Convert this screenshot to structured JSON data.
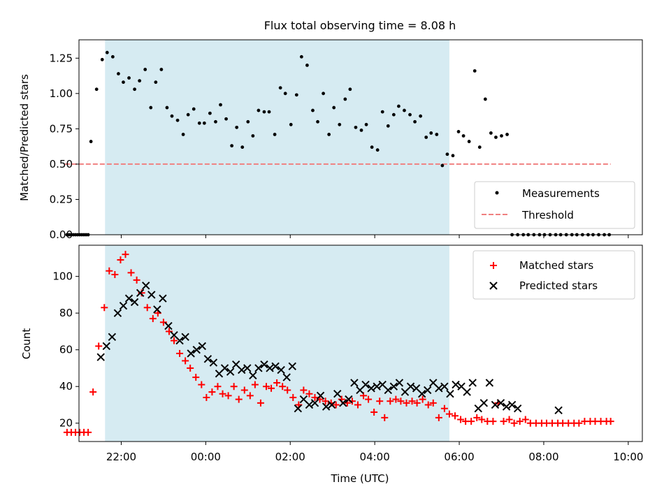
{
  "figure": {
    "title": "Flux total observing time = 8.08 h",
    "xlabel": "Time (UTC)",
    "shaded_color": "#add8e6"
  },
  "chart_data": [
    {
      "type": "scatter",
      "panel": "top",
      "ylabel": "Matched/Predicted stars",
      "xlim": [
        "21:00",
        "10:20"
      ],
      "ylim": [
        0,
        1.38
      ],
      "yticks": [
        0.0,
        0.25,
        0.5,
        0.75,
        1.0,
        1.25
      ],
      "ytick_labels": [
        "0.00",
        "0.25",
        "0.50",
        "0.75",
        "1.00",
        "1.25"
      ],
      "legend": {
        "location": "lower right"
      },
      "shaded_span": {
        "start": "21:37",
        "end": "05:46"
      },
      "threshold": {
        "name": "Threshold",
        "y": 0.5,
        "x_start": "20:40",
        "x_end": "09:35",
        "color": "#f08080",
        "style": "dashed"
      },
      "series": [
        {
          "name": "Measurements",
          "color": "#000000",
          "marker": "dot",
          "x": [
            "20:43",
            "20:46",
            "20:49",
            "20:52",
            "20:55",
            "20:58",
            "21:01",
            "21:04",
            "21:07",
            "21:10",
            "21:13",
            "21:17",
            "21:25",
            "21:33",
            "21:40",
            "21:48",
            "21:56",
            "22:03",
            "22:11",
            "22:19",
            "22:26",
            "22:34",
            "22:42",
            "22:49",
            "22:57",
            "23:05",
            "23:12",
            "23:20",
            "23:28",
            "23:35",
            "23:43",
            "23:51",
            "23:58",
            "00:06",
            "00:14",
            "00:21",
            "00:29",
            "00:37",
            "00:44",
            "00:52",
            "01:00",
            "01:07",
            "01:15",
            "01:23",
            "01:30",
            "01:38",
            "01:46",
            "01:53",
            "02:01",
            "02:09",
            "02:16",
            "02:24",
            "02:32",
            "02:39",
            "02:47",
            "02:55",
            "03:02",
            "03:10",
            "03:18",
            "03:25",
            "03:33",
            "03:41",
            "03:48",
            "03:56",
            "04:04",
            "04:11",
            "04:19",
            "04:27",
            "04:34",
            "04:42",
            "04:50",
            "04:57",
            "05:05",
            "05:13",
            "05:20",
            "05:28",
            "05:36",
            "05:43",
            "05:51",
            "05:59",
            "06:06",
            "06:14",
            "06:22",
            "06:29",
            "06:37",
            "06:45",
            "06:52",
            "07:00",
            "07:08",
            "07:15",
            "07:23",
            "07:31",
            "07:38",
            "07:46",
            "07:54",
            "08:01",
            "08:09",
            "08:17",
            "08:24",
            "08:32",
            "08:40",
            "08:47",
            "08:55",
            "09:03",
            "09:10",
            "09:18",
            "09:26",
            "09:33"
          ],
          "y": [
            0.0,
            0.0,
            0.0,
            0.0,
            0.0,
            0.0,
            0.0,
            0.0,
            0.0,
            0.0,
            0.0,
            0.66,
            1.03,
            1.24,
            1.29,
            1.26,
            1.14,
            1.08,
            1.11,
            1.03,
            1.09,
            1.17,
            0.9,
            1.08,
            1.17,
            0.9,
            0.84,
            0.81,
            0.71,
            0.85,
            0.89,
            0.79,
            0.79,
            0.86,
            0.8,
            0.92,
            0.82,
            0.63,
            0.76,
            0.62,
            0.8,
            0.7,
            0.88,
            0.87,
            0.87,
            0.71,
            1.04,
            1.0,
            0.78,
            0.99,
            1.26,
            1.2,
            0.88,
            0.8,
            1.0,
            0.71,
            0.9,
            0.78,
            0.96,
            1.03,
            0.76,
            0.74,
            0.78,
            0.62,
            0.6,
            0.87,
            0.77,
            0.85,
            0.91,
            0.88,
            0.85,
            0.8,
            0.84,
            0.69,
            0.72,
            0.71,
            0.49,
            0.57,
            0.56,
            0.73,
            0.7,
            0.66,
            1.16,
            0.62,
            0.96,
            0.72,
            0.69,
            0.7,
            0.71,
            0.0,
            0.0,
            0.0,
            0.0,
            0.0,
            0.0,
            0.0,
            0.0,
            0.0,
            0.0,
            0.0,
            0.0,
            0.0,
            0.0,
            0.0,
            0.0,
            0.0,
            0.0,
            0.0
          ]
        }
      ]
    },
    {
      "type": "scatter",
      "panel": "bottom",
      "ylabel": "Count",
      "xlim": [
        "21:00",
        "10:20"
      ],
      "ylim": [
        10,
        117
      ],
      "yticks": [
        20,
        40,
        60,
        80,
        100
      ],
      "ytick_labels": [
        "20",
        "40",
        "60",
        "80",
        "100"
      ],
      "xticks": [
        "22:00",
        "00:00",
        "02:00",
        "04:00",
        "06:00",
        "08:00",
        "10:00"
      ],
      "xtick_labels": [
        "22:00",
        "00:00",
        "02:00",
        "04:00",
        "06:00",
        "08:00",
        "10:00"
      ],
      "legend": {
        "location": "upper right"
      },
      "shaded_span": {
        "start": "21:37",
        "end": "05:46"
      },
      "series": [
        {
          "name": "Matched stars",
          "color": "#ff0000",
          "marker": "plus",
          "x": [
            "20:43",
            "20:49",
            "20:55",
            "21:01",
            "21:07",
            "21:13",
            "21:20",
            "21:28",
            "21:36",
            "21:43",
            "21:51",
            "21:59",
            "22:06",
            "22:14",
            "22:22",
            "22:29",
            "22:37",
            "22:45",
            "22:52",
            "23:00",
            "23:08",
            "23:15",
            "23:23",
            "23:31",
            "23:38",
            "23:46",
            "23:54",
            "00:01",
            "00:09",
            "00:17",
            "00:24",
            "00:32",
            "00:40",
            "00:47",
            "00:55",
            "01:03",
            "01:10",
            "01:18",
            "01:26",
            "01:33",
            "01:41",
            "01:49",
            "01:56",
            "02:04",
            "02:12",
            "02:19",
            "02:27",
            "02:35",
            "02:42",
            "02:50",
            "02:58",
            "03:05",
            "03:13",
            "03:21",
            "03:28",
            "03:36",
            "03:44",
            "03:51",
            "03:59",
            "04:07",
            "04:14",
            "04:22",
            "04:30",
            "04:37",
            "04:45",
            "04:53",
            "05:00",
            "05:08",
            "05:16",
            "05:23",
            "05:31",
            "05:39",
            "05:46",
            "05:54",
            "06:02",
            "06:09",
            "06:17",
            "06:25",
            "06:32",
            "06:40",
            "06:48",
            "06:55",
            "07:03",
            "07:11",
            "07:18",
            "07:26",
            "07:34",
            "07:41",
            "07:49",
            "07:57",
            "08:04",
            "08:12",
            "08:20",
            "08:27",
            "08:35",
            "08:43",
            "08:50",
            "08:58",
            "09:06",
            "09:13",
            "09:21",
            "09:29",
            "09:35"
          ],
          "y": [
            15,
            15,
            15,
            15,
            15,
            15,
            37,
            62,
            83,
            103,
            101,
            109,
            112,
            102,
            98,
            91,
            83,
            77,
            80,
            75,
            70,
            65,
            58,
            54,
            50,
            45,
            41,
            34,
            37,
            40,
            36,
            35,
            40,
            33,
            38,
            35,
            41,
            31,
            40,
            39,
            42,
            40,
            38,
            34,
            30,
            38,
            36,
            34,
            33,
            32,
            31,
            30,
            33,
            31,
            32,
            30,
            35,
            33,
            26,
            32,
            23,
            32,
            33,
            32,
            31,
            32,
            31,
            33,
            30,
            31,
            23,
            28,
            25,
            24,
            22,
            21,
            21,
            23,
            22,
            21,
            21,
            31,
            21,
            22,
            20,
            21,
            22,
            20,
            20,
            20,
            20,
            20,
            20,
            20,
            20,
            20,
            20,
            21,
            21,
            21,
            21,
            21,
            21
          ]
        },
        {
          "name": "Predicted stars",
          "color": "#000000",
          "marker": "x",
          "x": [
            "21:31",
            "21:39",
            "21:47",
            "21:55",
            "22:03",
            "22:11",
            "22:19",
            "22:27",
            "22:35",
            "22:43",
            "22:51",
            "22:59",
            "23:07",
            "23:15",
            "23:23",
            "23:31",
            "23:39",
            "23:47",
            "23:55",
            "00:03",
            "00:11",
            "00:19",
            "00:27",
            "00:35",
            "00:43",
            "00:51",
            "00:59",
            "01:07",
            "01:15",
            "01:23",
            "01:31",
            "01:39",
            "01:47",
            "01:55",
            "02:03",
            "02:11",
            "02:19",
            "02:27",
            "02:35",
            "02:43",
            "02:51",
            "02:59",
            "03:07",
            "03:15",
            "03:23",
            "03:31",
            "03:39",
            "03:47",
            "03:55",
            "04:03",
            "04:11",
            "04:19",
            "04:27",
            "04:35",
            "04:43",
            "04:51",
            "04:59",
            "05:07",
            "05:15",
            "05:23",
            "05:31",
            "05:39",
            "05:47",
            "05:55",
            "06:03",
            "06:11",
            "06:19",
            "06:27",
            "06:35",
            "06:43",
            "06:51",
            "06:59",
            "07:07",
            "07:15",
            "07:23",
            "08:21"
          ],
          "y": [
            56,
            62,
            67,
            80,
            84,
            88,
            86,
            91,
            95,
            90,
            82,
            88,
            73,
            68,
            65,
            67,
            58,
            60,
            62,
            55,
            53,
            47,
            50,
            48,
            52,
            49,
            50,
            46,
            50,
            52,
            50,
            51,
            49,
            45,
            51,
            28,
            33,
            30,
            31,
            35,
            29,
            30,
            36,
            31,
            33,
            42,
            38,
            41,
            39,
            40,
            41,
            38,
            40,
            42,
            37,
            40,
            39,
            36,
            38,
            42,
            39,
            40,
            36,
            41,
            40,
            37,
            42,
            28,
            31,
            42,
            30,
            31,
            29,
            30,
            28,
            27
          ]
        }
      ]
    }
  ]
}
